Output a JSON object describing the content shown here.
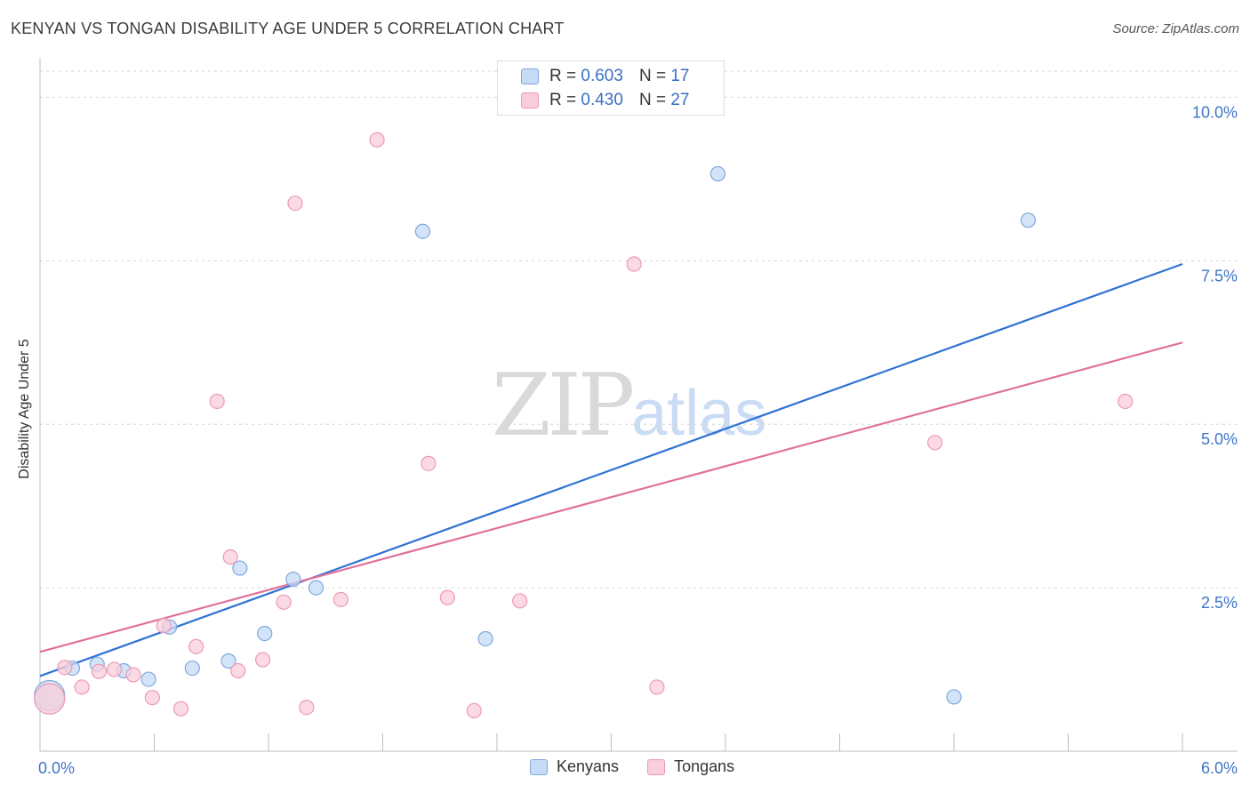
{
  "header": {
    "title": "KENYAN VS TONGAN DISABILITY AGE UNDER 5 CORRELATION CHART",
    "source": "Source: ZipAtlas.com"
  },
  "watermark": {
    "zip": "ZIP",
    "atlas": "atlas"
  },
  "legend_top": {
    "rows": [
      {
        "r_label": "R =",
        "r_value": "0.603",
        "n_label": "N =",
        "n_value": "17"
      },
      {
        "r_label": "R =",
        "r_value": "0.430",
        "n_label": "N =",
        "n_value": "27"
      }
    ]
  },
  "legend_bottom": {
    "kenyans": "Kenyans",
    "tongans": "Tongans"
  },
  "colors": {
    "kenyan_fill": "#c6dbf5",
    "kenyan_stroke": "#7fa8de",
    "kenyan_line": "#2f72d4",
    "tongan_fill": "#f9cdda",
    "tongan_stroke": "#eb9ab5",
    "tongan_line": "#e0719a",
    "tick_label": "#3f75c8",
    "grid": "#d6d6d6",
    "axis": "#bdbdbd"
  },
  "chart_data": {
    "type": "scatter",
    "title": "KENYAN VS TONGAN DISABILITY AGE UNDER 5 CORRELATION CHART",
    "xlabel": "",
    "ylabel": "Disability Age Under 5",
    "xlim": [
      0,
      6.0
    ],
    "ylim": [
      0,
      10.4
    ],
    "x_tick_labels": [
      "0.0%",
      "6.0%"
    ],
    "y_ticks": [
      2.5,
      5.0,
      7.5,
      10.0
    ],
    "y_tick_labels": [
      "2.5%",
      "5.0%",
      "7.5%",
      "10.0%"
    ],
    "series": [
      {
        "name": "Kenyans",
        "r": 0.603,
        "n": 17,
        "points": [
          {
            "x": 0.05,
            "y": 0.85,
            "big": true
          },
          {
            "x": 0.17,
            "y": 1.27
          },
          {
            "x": 0.3,
            "y": 1.33
          },
          {
            "x": 0.44,
            "y": 1.23
          },
          {
            "x": 0.57,
            "y": 1.1
          },
          {
            "x": 0.68,
            "y": 1.9
          },
          {
            "x": 0.8,
            "y": 1.27
          },
          {
            "x": 0.99,
            "y": 1.38
          },
          {
            "x": 1.05,
            "y": 2.8
          },
          {
            "x": 1.18,
            "y": 1.8
          },
          {
            "x": 1.33,
            "y": 2.63
          },
          {
            "x": 1.45,
            "y": 2.5
          },
          {
            "x": 2.01,
            "y": 7.95
          },
          {
            "x": 2.34,
            "y": 1.72
          },
          {
            "x": 3.56,
            "y": 8.83
          },
          {
            "x": 4.8,
            "y": 0.83
          },
          {
            "x": 5.19,
            "y": 8.12
          }
        ],
        "trend": {
          "x0": 0,
          "y0": 1.15,
          "x1": 6.0,
          "y1": 7.45
        }
      },
      {
        "name": "Tongans",
        "r": 0.43,
        "n": 27,
        "points": [
          {
            "x": 0.05,
            "y": 0.8,
            "big": true
          },
          {
            "x": 0.13,
            "y": 1.28
          },
          {
            "x": 0.22,
            "y": 0.98
          },
          {
            "x": 0.31,
            "y": 1.22
          },
          {
            "x": 0.39,
            "y": 1.25
          },
          {
            "x": 0.49,
            "y": 1.17
          },
          {
            "x": 0.59,
            "y": 0.82
          },
          {
            "x": 0.65,
            "y": 1.92
          },
          {
            "x": 0.74,
            "y": 0.65
          },
          {
            "x": 0.82,
            "y": 1.6
          },
          {
            "x": 0.93,
            "y": 5.35
          },
          {
            "x": 1.0,
            "y": 2.97
          },
          {
            "x": 1.04,
            "y": 1.23
          },
          {
            "x": 1.17,
            "y": 1.4
          },
          {
            "x": 1.28,
            "y": 2.28
          },
          {
            "x": 1.34,
            "y": 8.38
          },
          {
            "x": 1.4,
            "y": 0.67
          },
          {
            "x": 1.58,
            "y": 2.32
          },
          {
            "x": 1.77,
            "y": 9.35
          },
          {
            "x": 2.04,
            "y": 4.4
          },
          {
            "x": 2.14,
            "y": 2.35
          },
          {
            "x": 2.28,
            "y": 0.62
          },
          {
            "x": 2.52,
            "y": 2.3
          },
          {
            "x": 3.12,
            "y": 7.45
          },
          {
            "x": 3.24,
            "y": 0.98
          },
          {
            "x": 4.7,
            "y": 4.72
          },
          {
            "x": 5.7,
            "y": 5.35
          }
        ],
        "trend": {
          "x0": 0,
          "y0": 1.52,
          "x1": 6.0,
          "y1": 6.25
        }
      }
    ]
  }
}
